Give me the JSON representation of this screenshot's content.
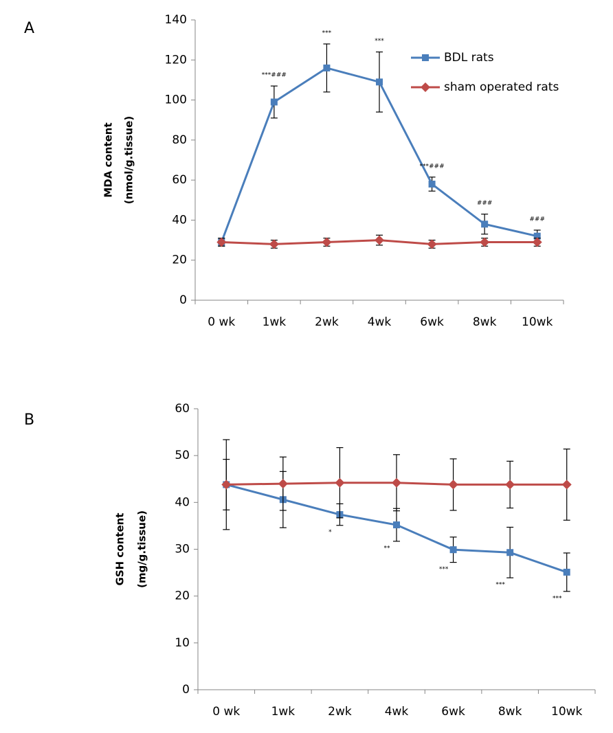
{
  "chart_data": [
    {
      "type": "line",
      "panel_label": "A",
      "y_label": [
        "MDA content",
        "(nmol/g.tissue)"
      ],
      "categories": [
        "0 wk",
        "1wk",
        "2wk",
        "4wk",
        "6wk",
        "8wk",
        "10wk"
      ],
      "ylim": [
        0,
        140
      ],
      "yticks": [
        0,
        20,
        40,
        60,
        80,
        100,
        120,
        140
      ],
      "legend": "upper right",
      "annotation_position": "above",
      "annotations": [
        null,
        "***###",
        "***",
        "***",
        "***###",
        "###",
        "###"
      ],
      "series": [
        {
          "name": "BDL rats",
          "color": "#4a7ebb",
          "marker": "square",
          "values": [
            29,
            99,
            116,
            109,
            58,
            38,
            32
          ],
          "errors": [
            2,
            8,
            12,
            15,
            3.5,
            5,
            3
          ]
        },
        {
          "name": "sham operated rats",
          "color": "#be4b48",
          "marker": "diamond",
          "values": [
            29,
            28,
            29,
            30,
            28,
            29,
            29
          ],
          "errors": [
            2,
            2,
            2,
            2.5,
            2,
            2,
            2
          ]
        }
      ]
    },
    {
      "type": "line",
      "panel_label": "B",
      "y_label": [
        "GSH content",
        "(mg/g.tissue)"
      ],
      "categories": [
        "0 wk",
        "1wk",
        "2wk",
        "4wk",
        "6wk",
        "8wk",
        "10wk"
      ],
      "ylim": [
        0,
        60
      ],
      "yticks": [
        0,
        10,
        20,
        30,
        40,
        50,
        60
      ],
      "annotation_position": "below",
      "annotations": [
        null,
        null,
        "*",
        "**",
        "***",
        "***",
        "***"
      ],
      "series": [
        {
          "color": "#4a7ebb",
          "marker": "square",
          "values": [
            43.8,
            40.6,
            37.4,
            35.2,
            29.9,
            29.3,
            25.1
          ],
          "errors": [
            5.4,
            6,
            2.3,
            3.5,
            2.7,
            5.4,
            4.1
          ]
        },
        {
          "color": "#be4b48",
          "marker": "diamond",
          "values": [
            43.8,
            44,
            44.2,
            44.2,
            43.8,
            43.8,
            43.8
          ],
          "errors": [
            9.6,
            5.7,
            7.5,
            6,
            5.5,
            5,
            7.6
          ]
        }
      ]
    }
  ]
}
